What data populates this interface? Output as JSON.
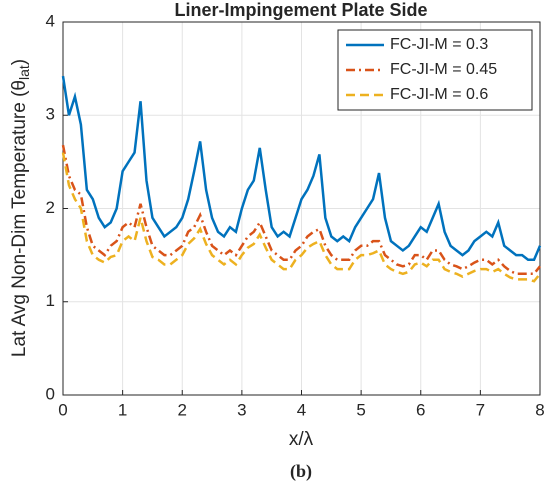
{
  "chart_data": {
    "type": "line",
    "title": "Liner-Impingement Plate Side",
    "xlabel": "x/λ",
    "ylabel": "Lat Avg Non-Dim Temperature (θ",
    "ylabel_sub": "lat",
    "ylabel_end": ")",
    "caption": "(b)",
    "x": [
      0,
      0.1,
      0.2,
      0.3,
      0.4,
      0.5,
      0.6,
      0.7,
      0.8,
      0.9,
      1,
      1.1,
      1.2,
      1.3,
      1.4,
      1.5,
      1.6,
      1.7,
      1.8,
      1.9,
      2,
      2.1,
      2.2,
      2.3,
      2.4,
      2.5,
      2.6,
      2.7,
      2.8,
      2.9,
      3,
      3.1,
      3.2,
      3.3,
      3.4,
      3.5,
      3.6,
      3.7,
      3.8,
      3.9,
      4,
      4.1,
      4.2,
      4.3,
      4.4,
      4.5,
      4.6,
      4.7,
      4.8,
      4.9,
      5,
      5.1,
      5.2,
      5.3,
      5.4,
      5.5,
      5.6,
      5.7,
      5.8,
      5.9,
      6,
      6.1,
      6.2,
      6.3,
      6.4,
      6.5,
      6.6,
      6.7,
      6.8,
      6.9,
      7,
      7.1,
      7.2,
      7.3,
      7.4,
      7.5,
      7.6,
      7.7,
      7.8,
      7.9,
      8
    ],
    "series": [
      {
        "name": "FC-JI-M = 0.3",
        "color": "#0072bd",
        "dash": "-",
        "values": [
          3.42,
          3.0,
          3.2,
          2.9,
          2.2,
          2.1,
          1.9,
          1.8,
          1.85,
          2.0,
          2.4,
          2.5,
          2.6,
          3.15,
          2.3,
          1.9,
          1.8,
          1.7,
          1.75,
          1.8,
          1.9,
          2.1,
          2.4,
          2.72,
          2.2,
          1.9,
          1.75,
          1.7,
          1.8,
          1.75,
          2.0,
          2.2,
          2.3,
          2.65,
          2.2,
          1.8,
          1.7,
          1.75,
          1.7,
          1.9,
          2.1,
          2.2,
          2.35,
          2.58,
          1.9,
          1.7,
          1.65,
          1.7,
          1.65,
          1.8,
          1.9,
          2.0,
          2.1,
          2.38,
          1.9,
          1.65,
          1.6,
          1.55,
          1.6,
          1.7,
          1.8,
          1.75,
          1.9,
          2.05,
          1.75,
          1.6,
          1.55,
          1.5,
          1.55,
          1.65,
          1.7,
          1.75,
          1.7,
          1.85,
          1.6,
          1.55,
          1.5,
          1.5,
          1.45,
          1.45,
          1.6
        ]
      },
      {
        "name": "FC-JI-M = 0.45",
        "color": "#d95319",
        "dash": "-.",
        "values": [
          2.68,
          2.35,
          2.2,
          2.15,
          1.8,
          1.6,
          1.55,
          1.5,
          1.6,
          1.65,
          1.8,
          1.85,
          1.8,
          2.05,
          1.8,
          1.6,
          1.55,
          1.5,
          1.5,
          1.55,
          1.6,
          1.75,
          1.8,
          1.93,
          1.75,
          1.6,
          1.55,
          1.5,
          1.55,
          1.5,
          1.6,
          1.7,
          1.75,
          1.85,
          1.7,
          1.55,
          1.5,
          1.45,
          1.45,
          1.55,
          1.6,
          1.7,
          1.75,
          1.78,
          1.6,
          1.5,
          1.45,
          1.45,
          1.45,
          1.55,
          1.6,
          1.6,
          1.65,
          1.65,
          1.5,
          1.45,
          1.4,
          1.38,
          1.4,
          1.5,
          1.5,
          1.45,
          1.55,
          1.55,
          1.45,
          1.4,
          1.38,
          1.35,
          1.38,
          1.42,
          1.45,
          1.45,
          1.4,
          1.45,
          1.38,
          1.33,
          1.3,
          1.3,
          1.3,
          1.3,
          1.38
        ]
      },
      {
        "name": "FC-JI-M = 0.6",
        "color": "#edb120",
        "dash": "--",
        "values": [
          2.6,
          2.25,
          2.1,
          2.0,
          1.65,
          1.5,
          1.45,
          1.42,
          1.48,
          1.5,
          1.65,
          1.7,
          1.65,
          1.9,
          1.65,
          1.48,
          1.45,
          1.4,
          1.4,
          1.45,
          1.5,
          1.62,
          1.68,
          1.78,
          1.62,
          1.5,
          1.45,
          1.4,
          1.45,
          1.4,
          1.5,
          1.58,
          1.62,
          1.72,
          1.58,
          1.45,
          1.4,
          1.35,
          1.35,
          1.45,
          1.5,
          1.58,
          1.62,
          1.65,
          1.5,
          1.4,
          1.35,
          1.35,
          1.35,
          1.45,
          1.5,
          1.5,
          1.52,
          1.55,
          1.4,
          1.35,
          1.32,
          1.3,
          1.32,
          1.4,
          1.42,
          1.38,
          1.45,
          1.45,
          1.35,
          1.32,
          1.3,
          1.27,
          1.3,
          1.33,
          1.35,
          1.35,
          1.32,
          1.35,
          1.3,
          1.26,
          1.24,
          1.24,
          1.24,
          1.22,
          1.3
        ]
      }
    ],
    "xlim": [
      0,
      8
    ],
    "xticks": [
      0,
      1,
      2,
      3,
      4,
      5,
      6,
      7,
      8
    ],
    "ylim": [
      0,
      4
    ],
    "yticks": [
      0,
      1,
      2,
      3,
      4
    ],
    "grid": true,
    "legend": "top-right"
  }
}
